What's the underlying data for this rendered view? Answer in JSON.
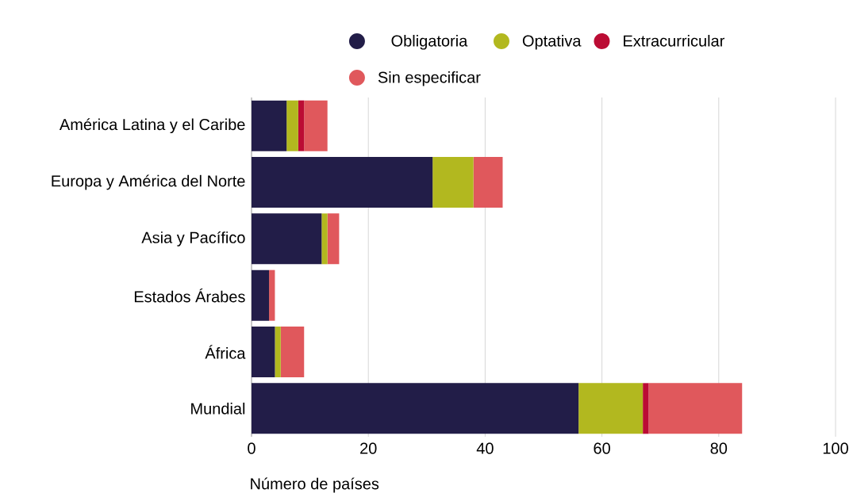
{
  "chart_data": {
    "type": "bar",
    "orientation": "horizontal",
    "stacked": true,
    "xlabel": "Número de países",
    "categories": [
      "América Latina y el Caribe",
      "Europa y América del Norte",
      "Asia y Pacífico",
      "Estados Árabes",
      "África",
      "Mundial"
    ],
    "series": [
      {
        "name": "Obligatoria",
        "color": "#221d48",
        "values": [
          6,
          31,
          12,
          3,
          4,
          56
        ]
      },
      {
        "name": "Optativa",
        "color": "#b2b81f",
        "values": [
          2,
          7,
          1,
          0,
          1,
          11
        ]
      },
      {
        "name": "Extracurricular",
        "color": "#bb0c34",
        "values": [
          1,
          0,
          0,
          0,
          0,
          1
        ]
      },
      {
        "name": "Sin especificar",
        "color": "#e0585c",
        "values": [
          4,
          5,
          2,
          1,
          4,
          16
        ]
      }
    ],
    "xlim": [
      0,
      100
    ],
    "xticks": [
      0,
      20,
      40,
      60,
      80,
      100
    ],
    "grid": "x",
    "legend": "top"
  }
}
